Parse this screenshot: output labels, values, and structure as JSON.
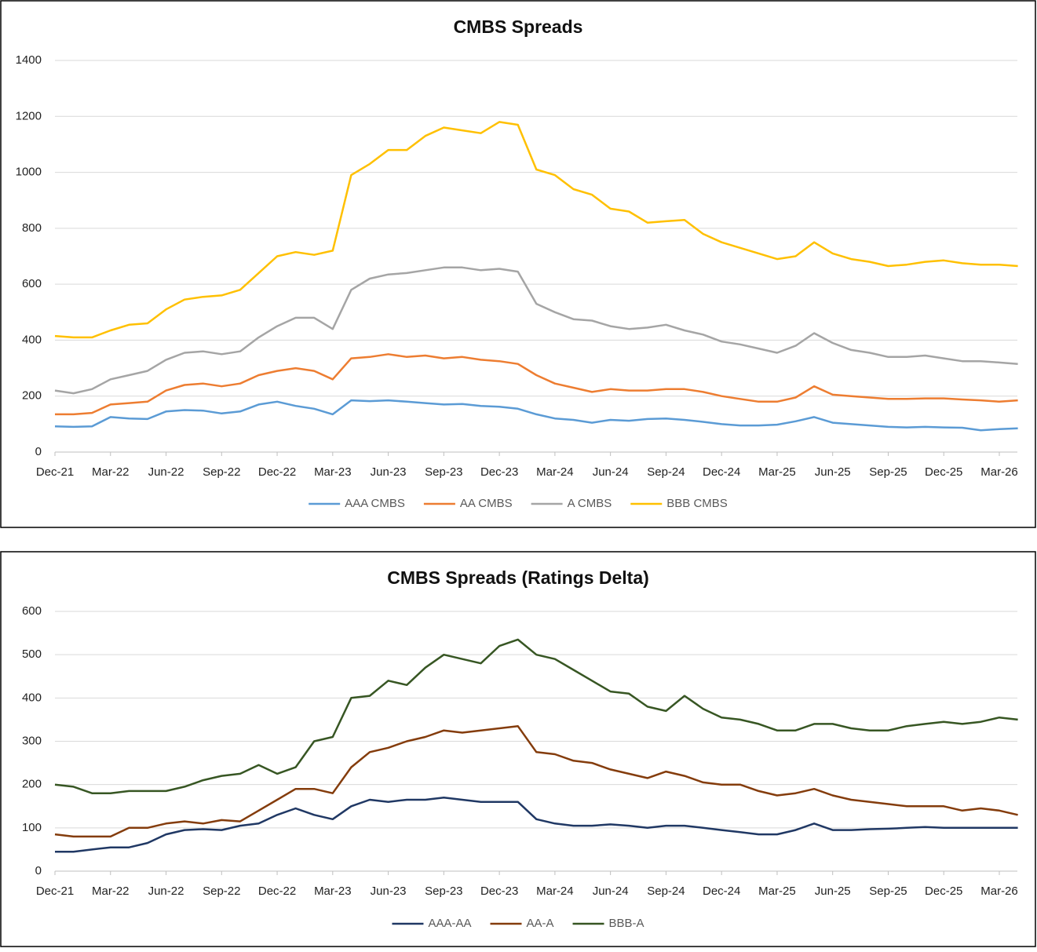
{
  "chart_data": [
    {
      "type": "line",
      "title": "CMBS Spreads",
      "categories": [
        "Dec-21",
        null,
        null,
        "Mar-22",
        null,
        null,
        "Jun-22",
        null,
        null,
        "Sep-22",
        null,
        null,
        "Dec-22",
        null,
        null,
        "Mar-23",
        null,
        null,
        "Jun-23",
        null,
        null,
        "Sep-23",
        null,
        null,
        "Dec-23",
        null,
        null,
        "Mar-24",
        null,
        null,
        "Jun-24",
        null,
        null,
        "Sep-24",
        null,
        null,
        "Dec-24",
        null,
        null,
        "Mar-25",
        null,
        null,
        "Jun-25",
        null,
        null,
        "Sep-25",
        null,
        null,
        "Dec-25",
        null,
        null,
        "Mar-26",
        null
      ],
      "series": [
        {
          "name": "AAA CMBS",
          "color": "#5b9bd5",
          "values": [
            92,
            90,
            92,
            125,
            120,
            118,
            145,
            150,
            148,
            138,
            145,
            170,
            180,
            165,
            155,
            135,
            185,
            182,
            185,
            180,
            175,
            170,
            172,
            165,
            162,
            155,
            135,
            120,
            115,
            105,
            115,
            112,
            118,
            120,
            115,
            108,
            100,
            95,
            95,
            98,
            110,
            125,
            105,
            100,
            95,
            90,
            88,
            90,
            88,
            87,
            78,
            82,
            85
          ]
        },
        {
          "name": "AA CMBS",
          "color": "#ed7d31",
          "values": [
            135,
            135,
            140,
            170,
            175,
            180,
            220,
            240,
            245,
            235,
            245,
            275,
            290,
            300,
            290,
            260,
            335,
            340,
            350,
            340,
            345,
            335,
            340,
            330,
            325,
            315,
            275,
            245,
            230,
            215,
            225,
            220,
            220,
            225,
            225,
            215,
            200,
            190,
            180,
            180,
            195,
            235,
            205,
            200,
            195,
            190,
            190,
            192,
            192,
            188,
            185,
            180,
            185
          ]
        },
        {
          "name": "A CMBS",
          "color": "#a5a5a5",
          "values": [
            220,
            210,
            225,
            260,
            275,
            290,
            330,
            355,
            360,
            350,
            360,
            410,
            450,
            480,
            480,
            440,
            580,
            620,
            635,
            640,
            650,
            660,
            660,
            650,
            655,
            645,
            530,
            500,
            475,
            470,
            450,
            440,
            445,
            455,
            435,
            420,
            395,
            385,
            370,
            355,
            380,
            425,
            390,
            365,
            355,
            340,
            340,
            345,
            335,
            325,
            325,
            320,
            315
          ]
        },
        {
          "name": "BBB CMBS",
          "color": "#ffc000",
          "values": [
            415,
            410,
            410,
            435,
            455,
            460,
            510,
            545,
            555,
            560,
            580,
            640,
            700,
            715,
            705,
            720,
            990,
            1030,
            1080,
            1080,
            1130,
            1160,
            1150,
            1140,
            1180,
            1170,
            1010,
            990,
            940,
            920,
            870,
            860,
            820,
            825,
            830,
            780,
            750,
            730,
            710,
            690,
            700,
            750,
            710,
            690,
            680,
            665,
            670,
            680,
            685,
            675,
            670,
            670,
            665
          ]
        }
      ],
      "ylim": [
        0,
        1400
      ],
      "yticks": [
        0,
        200,
        400,
        600,
        800,
        1000,
        1200,
        1400
      ],
      "grid": true,
      "legend": "bottom"
    },
    {
      "type": "line",
      "title": "CMBS Spreads (Ratings Delta)",
      "categories": [
        "Dec-21",
        null,
        null,
        "Mar-22",
        null,
        null,
        "Jun-22",
        null,
        null,
        "Sep-22",
        null,
        null,
        "Dec-22",
        null,
        null,
        "Mar-23",
        null,
        null,
        "Jun-23",
        null,
        null,
        "Sep-23",
        null,
        null,
        "Dec-23",
        null,
        null,
        "Mar-24",
        null,
        null,
        "Jun-24",
        null,
        null,
        "Sep-24",
        null,
        null,
        "Dec-24",
        null,
        null,
        "Mar-25",
        null,
        null,
        "Jun-25",
        null,
        null,
        "Sep-25",
        null,
        null,
        "Dec-25",
        null,
        null,
        "Mar-26",
        null
      ],
      "series": [
        {
          "name": "AAA-AA",
          "color": "#203864",
          "values": [
            45,
            45,
            50,
            55,
            55,
            65,
            85,
            95,
            97,
            95,
            105,
            110,
            130,
            145,
            130,
            120,
            150,
            165,
            160,
            165,
            165,
            170,
            165,
            160,
            160,
            160,
            120,
            110,
            105,
            105,
            108,
            105,
            100,
            105,
            105,
            100,
            95,
            90,
            85,
            85,
            95,
            110,
            95,
            95,
            97,
            98,
            100,
            102,
            100,
            100,
            100,
            100,
            100
          ]
        },
        {
          "name": "AA-A",
          "color": "#843c0c",
          "values": [
            85,
            80,
            80,
            80,
            100,
            100,
            110,
            115,
            110,
            118,
            115,
            140,
            165,
            190,
            190,
            180,
            240,
            275,
            285,
            300,
            310,
            325,
            320,
            325,
            330,
            335,
            275,
            270,
            255,
            250,
            235,
            225,
            215,
            230,
            220,
            205,
            200,
            200,
            185,
            175,
            180,
            190,
            175,
            165,
            160,
            155,
            150,
            150,
            150,
            140,
            145,
            140,
            130
          ]
        },
        {
          "name": "BBB-A",
          "color": "#375623",
          "values": [
            200,
            195,
            180,
            180,
            185,
            185,
            185,
            195,
            210,
            220,
            225,
            245,
            225,
            240,
            300,
            310,
            400,
            405,
            440,
            430,
            470,
            500,
            490,
            480,
            520,
            535,
            500,
            490,
            465,
            440,
            415,
            410,
            380,
            370,
            405,
            375,
            355,
            350,
            340,
            325,
            325,
            340,
            340,
            330,
            325,
            325,
            335,
            340,
            345,
            340,
            345,
            355,
            350
          ]
        }
      ],
      "ylim": [
        0,
        600
      ],
      "yticks": [
        0,
        100,
        200,
        300,
        400,
        500,
        600
      ],
      "grid": true,
      "legend": "bottom"
    }
  ]
}
